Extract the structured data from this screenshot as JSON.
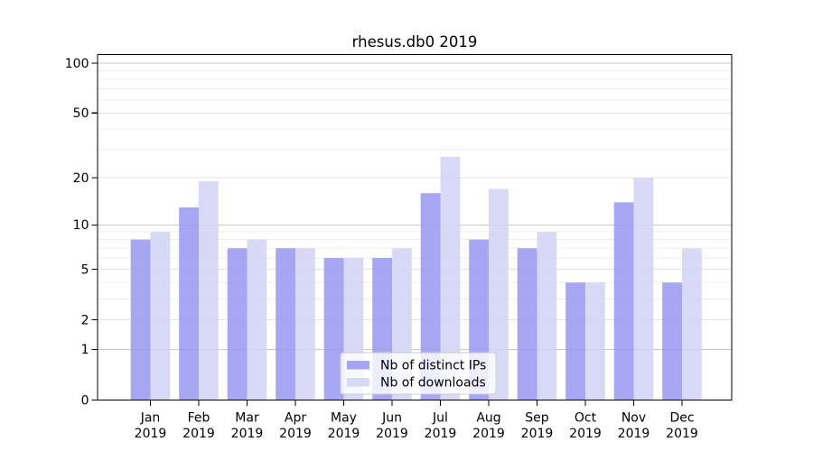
{
  "chart_data": {
    "type": "bar",
    "title": "rhesus.db0 2019",
    "categories": [
      "Jan",
      "Feb",
      "Mar",
      "Apr",
      "May",
      "Jun",
      "Jul",
      "Aug",
      "Sep",
      "Oct",
      "Nov",
      "Dec"
    ],
    "year": "2019",
    "series": [
      {
        "name": "Nb of distinct IPs",
        "color": "#9a9af0",
        "values": [
          8,
          13,
          7,
          7,
          6,
          6,
          16,
          8,
          7,
          4,
          14,
          4
        ]
      },
      {
        "name": "Nb of downloads",
        "color": "#d3d3f6",
        "values": [
          9,
          19,
          8,
          7,
          6,
          7,
          27,
          17,
          9,
          4,
          20,
          7
        ]
      }
    ],
    "yticks": [
      0,
      1,
      2,
      5,
      10,
      20,
      50,
      100
    ],
    "y_scale": "log1p",
    "ylim": [
      0,
      112
    ],
    "xlabel": "",
    "ylabel": "",
    "grid": "horizontal",
    "legend_position": "bottom-center-inside"
  }
}
